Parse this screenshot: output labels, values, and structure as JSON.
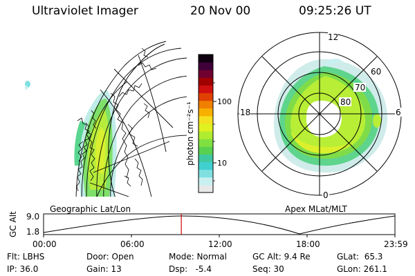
{
  "header": {
    "instrument": "Ultraviolet Imager",
    "date": "20 Nov 00",
    "time": "09:25:26 UT"
  },
  "colorbar": {
    "unit_label": "photon cm⁻²s⁻¹",
    "ticks": [
      "100",
      "10"
    ],
    "colors": [
      "#e8e8e8",
      "#c8f0f0",
      "#80e0e0",
      "#40d0d0",
      "#40c8a0",
      "#58d050",
      "#80e040",
      "#b0ec30",
      "#e0f020",
      "#f4e020",
      "#f8b000",
      "#f08000",
      "#e04000",
      "#d01010",
      "#a00000",
      "#700030",
      "#40003a",
      "#100010"
    ]
  },
  "left_panel": {
    "title": "Geographic Lat/Lon"
  },
  "right_panel": {
    "title": "Apex MLat/MLT",
    "mlt_labels": [
      "12",
      "18",
      "6",
      "0"
    ],
    "lat_labels": [
      "60",
      "70",
      "80"
    ]
  },
  "timeline": {
    "axis_label": "GC Alt",
    "y_ticks": [
      "9.0",
      "1.8"
    ],
    "x_ticks": [
      "00:00",
      "06:00",
      "12:00",
      "18:00",
      "23:59"
    ],
    "current_fraction": 0.392
  },
  "footer": {
    "filter": "Flt: LBHS",
    "door": "Door: Open",
    "mode": "Mode: Normal",
    "gc_alt": "GC Alt: 9.4 Re",
    "glat": "GLat:  65.3",
    "ip": "IP: 36.0",
    "gain": "Gain: 13",
    "dsp": "Dsp:   -5.4",
    "seq": "Seq: 30",
    "glon": "GLon: 261.1"
  }
}
